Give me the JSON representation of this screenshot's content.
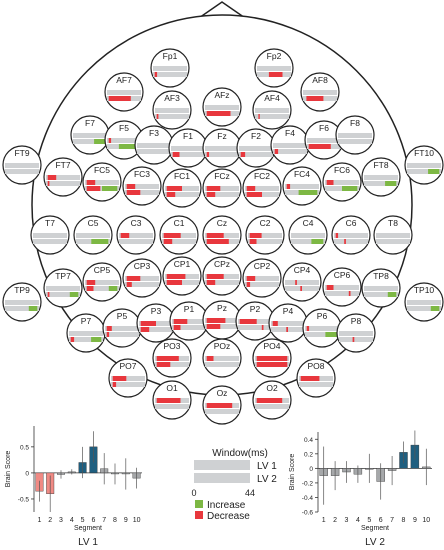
{
  "electrodes": [
    {
      "name": "Fp1",
      "marks": [
        {
          "s": 0.05,
          "e": 0.12,
          "row": 1,
          "c": "r"
        }
      ]
    },
    {
      "name": "Fp2",
      "marks": [
        {
          "s": 0.35,
          "e": 0.75,
          "row": 1,
          "c": "r"
        }
      ]
    },
    {
      "name": "AF7",
      "marks": [
        {
          "s": 0.05,
          "e": 0.7,
          "row": 1,
          "c": "r"
        }
      ]
    },
    {
      "name": "AF8",
      "marks": [
        {
          "s": 0.1,
          "e": 0.6,
          "row": 1,
          "c": "r"
        }
      ]
    },
    {
      "name": "AF3",
      "marks": [
        {
          "s": 0.05,
          "e": 0.1,
          "row": 1,
          "c": "r"
        }
      ]
    },
    {
      "name": "AFz",
      "marks": [
        {
          "s": 0.05,
          "e": 0.75,
          "row": 1,
          "c": "r"
        }
      ]
    },
    {
      "name": "AF4",
      "marks": [
        {
          "s": 0.1,
          "e": 0.14,
          "row": 1,
          "c": "r"
        }
      ]
    },
    {
      "name": "F7",
      "marks": [
        {
          "s": 0.62,
          "e": 0.95,
          "row": 1,
          "c": "g"
        }
      ]
    },
    {
      "name": "F5",
      "marks": [
        {
          "s": 0.05,
          "e": 0.12,
          "row": 0,
          "c": "r"
        },
        {
          "s": 0.35,
          "e": 0.95,
          "row": 1,
          "c": "g"
        }
      ]
    },
    {
      "name": "F3",
      "marks": []
    },
    {
      "name": "F1",
      "marks": [
        {
          "s": 0.05,
          "e": 0.25,
          "row": 1,
          "c": "r"
        }
      ]
    },
    {
      "name": "Fz",
      "marks": [
        {
          "s": 0.05,
          "e": 0.12,
          "row": 1,
          "c": "r"
        }
      ]
    },
    {
      "name": "F2",
      "marks": [
        {
          "s": 0.05,
          "e": 0.18,
          "row": 1,
          "c": "r"
        }
      ]
    },
    {
      "name": "F4",
      "marks": [
        {
          "s": 0.05,
          "e": 0.15,
          "row": 1,
          "c": "r"
        }
      ]
    },
    {
      "name": "F6",
      "marks": [
        {
          "s": 0.05,
          "e": 0.7,
          "row": 1,
          "c": "r"
        }
      ]
    },
    {
      "name": "F8",
      "marks": []
    },
    {
      "name": "FT9",
      "marks": []
    },
    {
      "name": "FT7",
      "marks": [
        {
          "s": 0.05,
          "e": 0.3,
          "row": 0,
          "c": "r"
        },
        {
          "s": 0.05,
          "e": 0.1,
          "row": 1,
          "c": "r"
        }
      ]
    },
    {
      "name": "FC5",
      "marks": [
        {
          "s": 0.05,
          "e": 0.3,
          "row": 0,
          "c": "r"
        },
        {
          "s": 0.05,
          "e": 0.45,
          "row": 1,
          "c": "r"
        },
        {
          "s": 0.5,
          "e": 0.95,
          "row": 1,
          "c": "g"
        }
      ]
    },
    {
      "name": "FC3",
      "marks": [
        {
          "s": 0.05,
          "e": 0.3,
          "row": 0,
          "c": "r"
        },
        {
          "s": 0.05,
          "e": 0.45,
          "row": 1,
          "c": "r"
        }
      ]
    },
    {
      "name": "FC1",
      "marks": [
        {
          "s": 0.05,
          "e": 0.5,
          "row": 0,
          "c": "r"
        },
        {
          "s": 0.05,
          "e": 0.3,
          "row": 1,
          "c": "r"
        }
      ]
    },
    {
      "name": "FCz",
      "marks": [
        {
          "s": 0.05,
          "e": 0.45,
          "row": 0,
          "c": "r"
        },
        {
          "s": 0.05,
          "e": 0.3,
          "row": 1,
          "c": "r"
        }
      ]
    },
    {
      "name": "FC2",
      "marks": [
        {
          "s": 0.05,
          "e": 0.3,
          "row": 0,
          "c": "r"
        },
        {
          "s": 0.05,
          "e": 0.5,
          "row": 1,
          "c": "r"
        }
      ]
    },
    {
      "name": "FC4",
      "marks": [
        {
          "s": 0.05,
          "e": 0.15,
          "row": 0,
          "c": "r"
        },
        {
          "s": 0.4,
          "e": 0.95,
          "row": 1,
          "c": "g"
        }
      ]
    },
    {
      "name": "FC6",
      "marks": [
        {
          "s": 0.05,
          "e": 0.25,
          "row": 0,
          "c": "r"
        },
        {
          "s": 0.5,
          "e": 0.95,
          "row": 1,
          "c": "g"
        }
      ]
    },
    {
      "name": "FT8",
      "marks": [
        {
          "s": 0.62,
          "e": 0.95,
          "row": 1,
          "c": "g"
        }
      ]
    },
    {
      "name": "FT10",
      "marks": [
        {
          "s": 0.62,
          "e": 0.95,
          "row": 1,
          "c": "g"
        }
      ]
    },
    {
      "name": "T7",
      "marks": []
    },
    {
      "name": "C5",
      "marks": [
        {
          "s": 0.45,
          "e": 0.95,
          "row": 1,
          "c": "g"
        }
      ]
    },
    {
      "name": "C3",
      "marks": [
        {
          "s": 0.05,
          "e": 0.3,
          "row": 0,
          "c": "r"
        }
      ]
    },
    {
      "name": "C1",
      "marks": [
        {
          "s": 0.05,
          "e": 0.55,
          "row": 0,
          "c": "r"
        },
        {
          "s": 0.05,
          "e": 0.3,
          "row": 1,
          "c": "r"
        }
      ]
    },
    {
      "name": "Cz",
      "marks": [
        {
          "s": 0.05,
          "e": 0.55,
          "row": 0,
          "c": "r"
        },
        {
          "s": 0.05,
          "e": 0.7,
          "row": 1,
          "c": "r"
        }
      ]
    },
    {
      "name": "C2",
      "marks": [
        {
          "s": 0.05,
          "e": 0.4,
          "row": 0,
          "c": "r"
        },
        {
          "s": 0.05,
          "e": 0.25,
          "row": 1,
          "c": "r"
        }
      ]
    },
    {
      "name": "C4",
      "marks": [
        {
          "s": 0.6,
          "e": 0.95,
          "row": 1,
          "c": "g"
        }
      ]
    },
    {
      "name": "C6",
      "marks": [
        {
          "s": 0.05,
          "e": 0.12,
          "row": 0,
          "c": "r"
        },
        {
          "s": 0.3,
          "e": 0.35,
          "row": 1,
          "c": "r"
        }
      ]
    },
    {
      "name": "T8",
      "marks": []
    },
    {
      "name": "TP9",
      "marks": [
        {
          "s": 0.7,
          "e": 0.95,
          "row": 1,
          "c": "g"
        }
      ]
    },
    {
      "name": "TP7",
      "marks": [
        {
          "s": 0.05,
          "e": 0.1,
          "row": 1,
          "c": "r"
        },
        {
          "s": 0.7,
          "e": 0.95,
          "row": 1,
          "c": "g"
        }
      ]
    },
    {
      "name": "CP5",
      "marks": [
        {
          "s": 0.05,
          "e": 0.3,
          "row": 0,
          "c": "r"
        },
        {
          "s": 0.05,
          "e": 0.25,
          "row": 1,
          "c": "r"
        },
        {
          "s": 0.7,
          "e": 0.95,
          "row": 1,
          "c": "g"
        }
      ]
    },
    {
      "name": "CP3",
      "marks": [
        {
          "s": 0.05,
          "e": 0.45,
          "row": 0,
          "c": "r"
        },
        {
          "s": 0.05,
          "e": 0.2,
          "row": 1,
          "c": "r"
        }
      ]
    },
    {
      "name": "CP1",
      "marks": [
        {
          "s": 0.05,
          "e": 0.6,
          "row": 0,
          "c": "r"
        },
        {
          "s": 0.05,
          "e": 0.5,
          "row": 1,
          "c": "r"
        }
      ]
    },
    {
      "name": "CPz",
      "marks": [
        {
          "s": 0.05,
          "e": 0.55,
          "row": 0,
          "c": "r"
        },
        {
          "s": 0.05,
          "e": 0.3,
          "row": 1,
          "c": "r"
        }
      ]
    },
    {
      "name": "CP2",
      "marks": [
        {
          "s": 0.05,
          "e": 0.3,
          "row": 0,
          "c": "r"
        },
        {
          "s": 0.05,
          "e": 0.15,
          "row": 1,
          "c": "r"
        }
      ]
    },
    {
      "name": "CP4",
      "marks": [
        {
          "s": 0.3,
          "e": 0.35,
          "row": 0,
          "c": "r"
        },
        {
          "s": 0.45,
          "e": 0.5,
          "row": 1,
          "c": "r"
        }
      ]
    },
    {
      "name": "CP6",
      "marks": [
        {
          "s": 0.05,
          "e": 0.25,
          "row": 0,
          "c": "r"
        },
        {
          "s": 0.7,
          "e": 0.75,
          "row": 1,
          "c": "r"
        }
      ]
    },
    {
      "name": "TP8",
      "marks": [
        {
          "s": 0.7,
          "e": 0.95,
          "row": 1,
          "c": "g"
        }
      ]
    },
    {
      "name": "TP10",
      "marks": [
        {
          "s": 0.7,
          "e": 0.95,
          "row": 1,
          "c": "g"
        }
      ]
    },
    {
      "name": "P7",
      "marks": [
        {
          "s": 0.05,
          "e": 0.15,
          "row": 1,
          "c": "r"
        },
        {
          "s": 0.65,
          "e": 0.95,
          "row": 1,
          "c": "g"
        }
      ]
    },
    {
      "name": "P5",
      "marks": [
        {
          "s": 0.05,
          "e": 0.2,
          "row": 0,
          "c": "r"
        },
        {
          "s": 0.05,
          "e": 0.12,
          "row": 1,
          "c": "r"
        }
      ]
    },
    {
      "name": "P3",
      "marks": [
        {
          "s": 0.05,
          "e": 0.5,
          "row": 0,
          "c": "r"
        },
        {
          "s": 0.05,
          "e": 0.3,
          "row": 1,
          "c": "r"
        }
      ]
    },
    {
      "name": "P1",
      "marks": [
        {
          "s": 0.05,
          "e": 0.45,
          "row": 0,
          "c": "r"
        },
        {
          "s": 0.05,
          "e": 0.25,
          "row": 1,
          "c": "r"
        }
      ]
    },
    {
      "name": "Pz",
      "marks": [
        {
          "s": 0.05,
          "e": 0.6,
          "row": 0,
          "c": "r"
        },
        {
          "s": 0.05,
          "e": 0.45,
          "row": 1,
          "c": "r"
        }
      ]
    },
    {
      "name": "P2",
      "marks": [
        {
          "s": 0.05,
          "e": 0.55,
          "row": 0,
          "c": "r"
        },
        {
          "s": 0.7,
          "e": 0.75,
          "row": 1,
          "c": "r"
        }
      ]
    },
    {
      "name": "P4",
      "marks": [
        {
          "s": 0.05,
          "e": 0.2,
          "row": 0,
          "c": "r"
        },
        {
          "s": 0.45,
          "e": 0.5,
          "row": 1,
          "c": "r"
        }
      ]
    },
    {
      "name": "P6",
      "marks": [
        {
          "s": 0.05,
          "e": 0.12,
          "row": 0,
          "c": "r"
        },
        {
          "s": 0.6,
          "e": 0.95,
          "row": 1,
          "c": "g"
        }
      ]
    },
    {
      "name": "P8",
      "marks": [
        {
          "s": 0.4,
          "e": 0.45,
          "row": 1,
          "c": "r"
        }
      ]
    },
    {
      "name": "PO7",
      "marks": [
        {
          "s": 0.05,
          "e": 0.45,
          "row": 0,
          "c": "r"
        },
        {
          "s": 0.05,
          "e": 0.15,
          "row": 1,
          "c": "r"
        }
      ]
    },
    {
      "name": "PO3",
      "marks": [
        {
          "s": 0.05,
          "e": 0.7,
          "row": 0,
          "c": "r"
        },
        {
          "s": 0.05,
          "e": 0.45,
          "row": 1,
          "c": "r"
        }
      ]
    },
    {
      "name": "POz",
      "marks": [
        {
          "s": 0.05,
          "e": 0.25,
          "row": 0,
          "c": "r"
        }
      ]
    },
    {
      "name": "PO4",
      "marks": [
        {
          "s": 0.05,
          "e": 0.95,
          "row": 0,
          "c": "r"
        },
        {
          "s": 0.05,
          "e": 0.95,
          "row": 1,
          "c": "r"
        }
      ]
    },
    {
      "name": "PO8",
      "marks": [
        {
          "s": 0.05,
          "e": 0.6,
          "row": 0,
          "c": "r"
        }
      ]
    },
    {
      "name": "O1",
      "marks": [
        {
          "s": 0.05,
          "e": 0.75,
          "row": 0,
          "c": "r"
        }
      ]
    },
    {
      "name": "Oz",
      "marks": [
        {
          "s": 0.05,
          "e": 0.8,
          "row": 0,
          "c": "r"
        }
      ]
    },
    {
      "name": "O2",
      "marks": [
        {
          "s": 0.05,
          "e": 0.8,
          "row": 0,
          "c": "r"
        }
      ]
    }
  ],
  "legend": {
    "title": "Window(ms)",
    "row1": "LV 1",
    "row2": "LV 2",
    "start": "0",
    "end": "44",
    "increase": "Increase",
    "decrease": "Decrease"
  },
  "colors": {
    "increase": "#7db844",
    "decrease": "#e8373d",
    "track": "#cfd1d3",
    "neg_bar": "#f08a84",
    "pos_bar": "#1f5f80",
    "small_bar": "#a6a8aa"
  },
  "chart_data": [
    {
      "type": "bar",
      "title": "LV 1",
      "xlabel": "Segment",
      "ylabel": "Brain Score",
      "categories": [
        "1",
        "2",
        "3",
        "4",
        "5",
        "6",
        "7",
        "8",
        "9",
        "10"
      ],
      "values": [
        -0.35,
        -0.4,
        -0.03,
        0.02,
        0.2,
        0.5,
        0.08,
        -0.02,
        -0.02,
        -0.1
      ],
      "errors": [
        0.2,
        0.35,
        0.08,
        0.05,
        0.3,
        0.3,
        0.3,
        0.2,
        0.3,
        0.2
      ],
      "ticks": [
        "-0.5",
        "0",
        "0.5"
      ],
      "ylim": [
        -0.75,
        0.9
      ]
    },
    {
      "type": "bar",
      "title": "LV 2",
      "xlabel": "Segment",
      "ylabel": "Brain Score",
      "categories": [
        "1",
        "2",
        "3",
        "4",
        "5",
        "6",
        "7",
        "8",
        "9",
        "10"
      ],
      "values": [
        -0.1,
        -0.1,
        -0.05,
        -0.08,
        0.0,
        -0.18,
        -0.03,
        0.22,
        0.32,
        0.02
      ],
      "errors": [
        0.4,
        0.2,
        0.15,
        0.12,
        0.2,
        0.25,
        0.2,
        0.15,
        0.2,
        0.25
      ],
      "ticks": [
        "-0.6",
        "-0.4",
        "-0.2",
        "0",
        "0.2",
        "0.4"
      ],
      "ylim": [
        -0.6,
        0.5
      ]
    }
  ]
}
